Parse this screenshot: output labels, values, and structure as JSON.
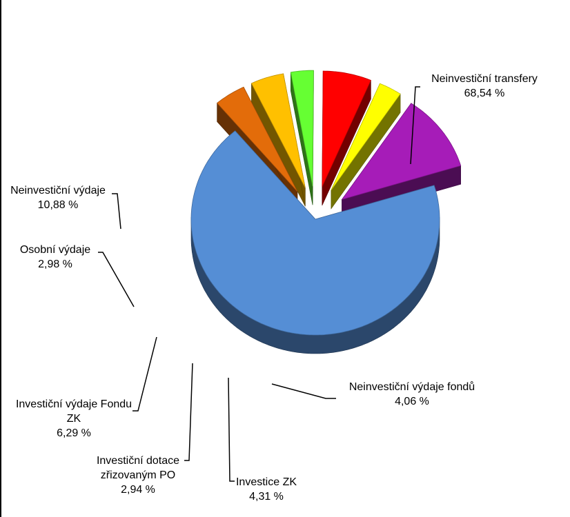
{
  "chart_data": {
    "type": "pie",
    "style": "3d-exploded",
    "title": "",
    "legend": "none",
    "slices": [
      {
        "name": "Neinvestiční transfery",
        "value": 68.54,
        "label": "68,54 %",
        "color": "#558ED5"
      },
      {
        "name": "Neinvestiční výdaje fondů",
        "value": 4.06,
        "label": "4,06 %",
        "color": "#E36C0A"
      },
      {
        "name": "Investice ZK",
        "value": 4.31,
        "label": "4,31 %",
        "color": "#FFC000"
      },
      {
        "name": "Investiční dotace zřizovaným PO",
        "value": 2.94,
        "label": "2,94 %",
        "color": "#66FF33"
      },
      {
        "name": "Investiční výdaje Fondu ZK",
        "value": 6.29,
        "label": "6,29 %",
        "color": "#FF0000"
      },
      {
        "name": "Osobní výdaje",
        "value": 2.98,
        "label": "2,98 %",
        "color": "#FFFF00"
      },
      {
        "name": "Neinvestiční výdaje",
        "value": 10.88,
        "label": "10,88 %",
        "color": "#A61CB8"
      }
    ]
  }
}
